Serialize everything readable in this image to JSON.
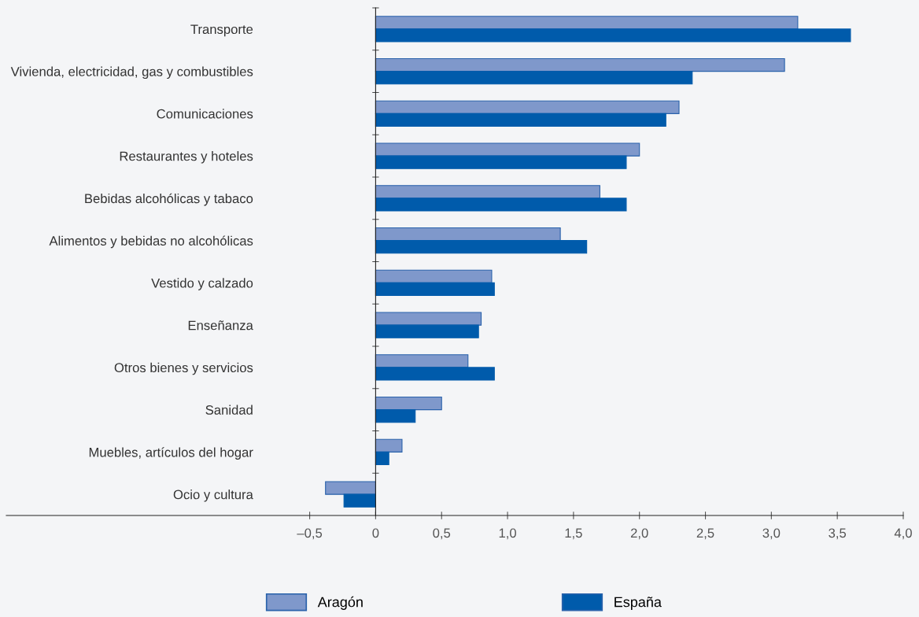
{
  "chart_data": {
    "type": "bar",
    "orientation": "horizontal",
    "categories": [
      "Transporte",
      "Vivienda, electricidad, gas y combustibles",
      "Comunicaciones",
      "Restaurantes y hoteles",
      "Bebidas alcohólicas y tabaco",
      "Alimentos y bebidas no alcohólicas",
      "Vestido y calzado",
      "Enseñanza",
      "Otros bienes y servicios",
      "Sanidad",
      "Muebles, artículos del hogar",
      "Ocio y cultura"
    ],
    "series": [
      {
        "name": "Aragón",
        "color": "#7f98cb",
        "values": [
          3.2,
          3.1,
          2.3,
          2.0,
          1.7,
          1.4,
          0.88,
          0.8,
          0.7,
          0.5,
          0.2,
          -0.38
        ]
      },
      {
        "name": "España",
        "color": "#005bab",
        "values": [
          3.6,
          2.4,
          2.2,
          1.9,
          1.9,
          1.6,
          0.9,
          0.78,
          0.9,
          0.3,
          0.1,
          -0.24
        ]
      }
    ],
    "xlim": [
      -2.8,
      4.0
    ],
    "xticks": [
      {
        "value": -0.5,
        "label": "–0,5"
      },
      0,
      {
        "value": 0.5,
        "label": "0,5"
      },
      {
        "value": 1.0,
        "label": "1,0"
      },
      {
        "value": 1.5,
        "label": "1,5"
      },
      {
        "value": 2.0,
        "label": "2,0"
      },
      {
        "value": 2.5,
        "label": "2,5"
      },
      {
        "value": 3.0,
        "label": "3,0"
      },
      {
        "value": 3.5,
        "label": "3,5"
      },
      {
        "value": 4.0,
        "label": "4,0"
      }
    ],
    "legend": "bottom"
  }
}
